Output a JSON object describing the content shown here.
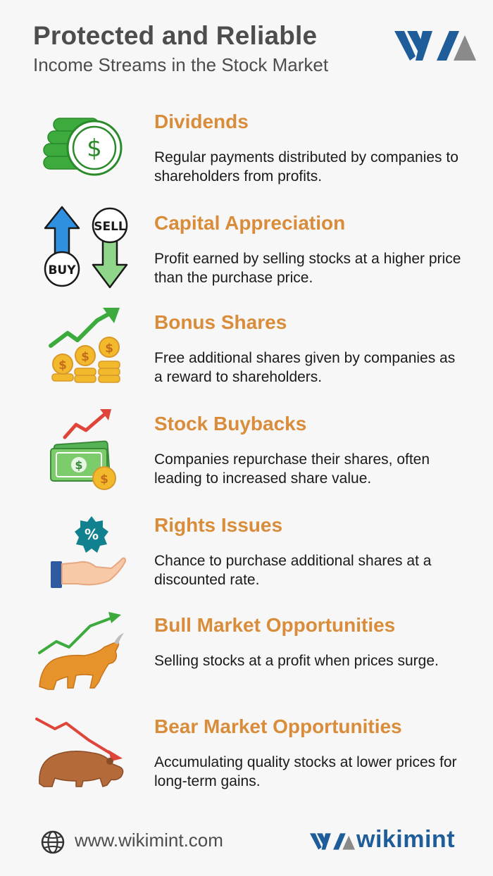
{
  "header": {
    "title": "Protected and Reliable",
    "subtitle": "Income Streams in the Stock Market"
  },
  "logo": {
    "icon": "wikimint-logo",
    "colors": {
      "blue": "#1f5d9a",
      "gray": "#8a8a8a"
    }
  },
  "items": [
    {
      "title": "Dividends",
      "description": "Regular payments distributed by companies to shareholders from profits.",
      "icon": "coin-stack-icon"
    },
    {
      "title": "Capital Appreciation",
      "description": "Profit earned by selling stocks at a higher price than the purchase price.",
      "icon": "buy-sell-arrows-icon",
      "icon_labels": {
        "buy": "BUY",
        "sell": "SELL"
      }
    },
    {
      "title": "Bonus Shares",
      "description": "Free additional shares given by companies as a reward to shareholders.",
      "icon": "rising-coins-icon"
    },
    {
      "title": "Stock Buybacks",
      "description": "Companies repurchase their shares, often leading to increased share value.",
      "icon": "cash-growth-icon"
    },
    {
      "title": "Rights Issues",
      "description": "Chance to purchase additional shares at a discounted rate.",
      "icon": "hand-discount-icon",
      "icon_label": "%"
    },
    {
      "title": "Bull Market Opportunities",
      "description": "Selling stocks at a profit when prices surge.",
      "icon": "bull-icon"
    },
    {
      "title": "Bear Market Opportunities",
      "description": "Accumulating quality stocks at lower prices for long-term gains.",
      "icon": "bear-icon"
    }
  ],
  "footer": {
    "website": "www.wikimint.com",
    "brand": "wikimint",
    "icon": "globe-icon"
  },
  "colors": {
    "accent": "#d98c3a",
    "heading": "#4d4d4d",
    "text": "#1a1a1a",
    "brand": "#1f5d9a",
    "background": "#f7f7f7"
  }
}
